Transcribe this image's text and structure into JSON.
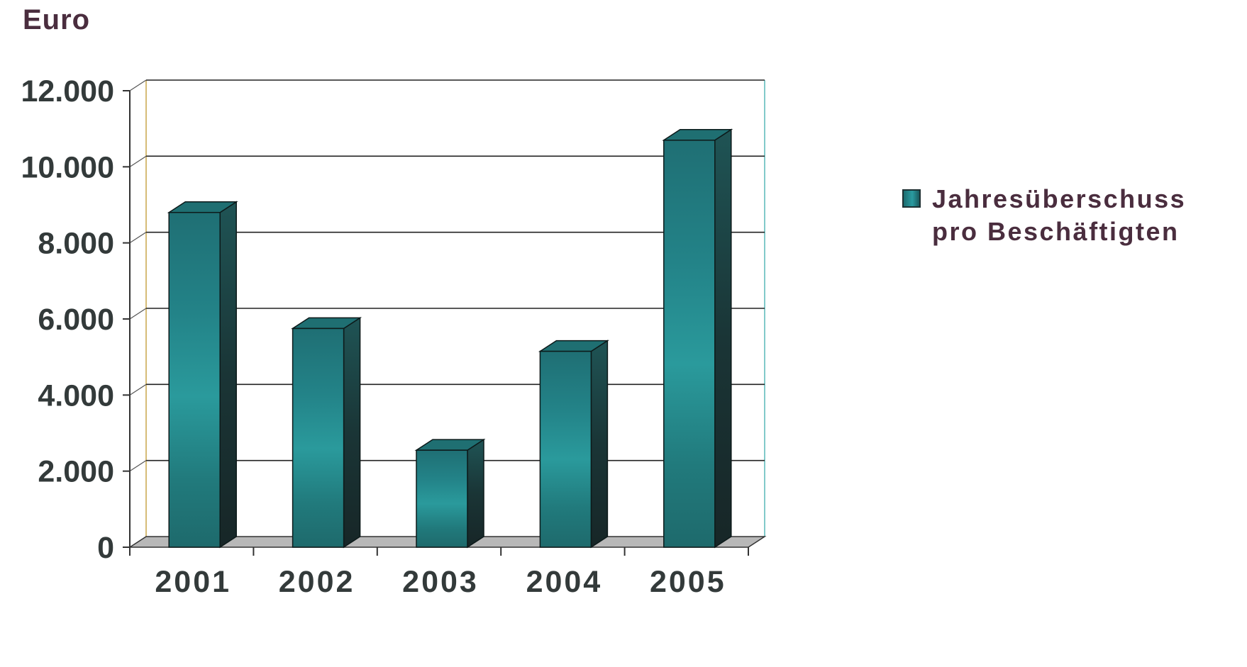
{
  "chart_data": {
    "type": "bar",
    "categories": [
      "2001",
      "2002",
      "2003",
      "2004",
      "2005"
    ],
    "series": [
      {
        "name": "Jahresüberschuss pro Beschäftigten",
        "values": [
          8800,
          5750,
          2550,
          5150,
          10700
        ]
      }
    ],
    "ylabel": "Euro",
    "ylim": [
      0,
      12000
    ],
    "yticks": [
      0,
      2000,
      4000,
      6000,
      8000,
      10000,
      12000
    ],
    "ytick_labels": [
      "0",
      "2.000",
      "4.000",
      "6.000",
      "8.000",
      "10.000",
      "12.000"
    ],
    "grid": true,
    "legend_position": "right",
    "legend_lines": [
      "Jahresüberschuss",
      "pro Beschäftigten"
    ],
    "style": "3d-column",
    "colors": {
      "bar_front": "#238a8e",
      "bar_side": "#1b3b3d",
      "bar_top": "#1f6f72",
      "floor": "#b8b8b8",
      "gridline": "#222222",
      "text": "#333a3a",
      "label_text": "#4a2d3e"
    }
  }
}
